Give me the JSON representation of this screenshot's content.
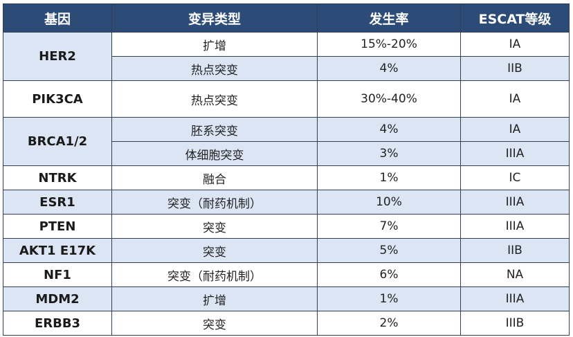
{
  "headers": [
    "基因",
    "变异类型",
    "发生率",
    "ESCAT等级"
  ],
  "rows": [
    {
      "gene": "HER2",
      "variants": [
        {
          "type": "扩增",
          "rate": "15%-20%",
          "level": "IA"
        },
        {
          "type": "热点突变",
          "rate": "4%",
          "level": "IIB"
        }
      ]
    },
    {
      "gene": "PIK3CA",
      "variants": [
        {
          "type": "热点突变",
          "rate": "30%-40%",
          "level": "IA"
        }
      ]
    },
    {
      "gene": "BRCA1/2",
      "variants": [
        {
          "type": "胚系突变",
          "rate": "4%",
          "level": "IA"
        },
        {
          "type": "体细胞突变",
          "rate": "3%",
          "level": "IIIA"
        }
      ]
    },
    {
      "gene": "NTRK",
      "variants": [
        {
          "type": "融合",
          "rate": "1%",
          "level": "IC"
        }
      ]
    },
    {
      "gene": "ESR1",
      "variants": [
        {
          "type": "突变（耐药机制）",
          "rate": "10%",
          "level": "IIIA"
        }
      ]
    },
    {
      "gene": "PTEN",
      "variants": [
        {
          "type": "突变",
          "rate": "7%",
          "level": "IIIA"
        }
      ]
    },
    {
      "gene": "AKT1 E17K",
      "variants": [
        {
          "type": "突变",
          "rate": "5%",
          "level": "IIB"
        }
      ]
    },
    {
      "gene": "NF1",
      "variants": [
        {
          "type": "突变（耐药机制）",
          "rate": "6%",
          "level": "NA"
        }
      ]
    },
    {
      "gene": "MDM2",
      "variants": [
        {
          "type": "扩增",
          "rate": "1%",
          "level": "IIIA"
        }
      ]
    },
    {
      "gene": "ERBB3",
      "variants": [
        {
          "type": "突变",
          "rate": "2%",
          "level": "IIIB"
        }
      ]
    }
  ]
}
